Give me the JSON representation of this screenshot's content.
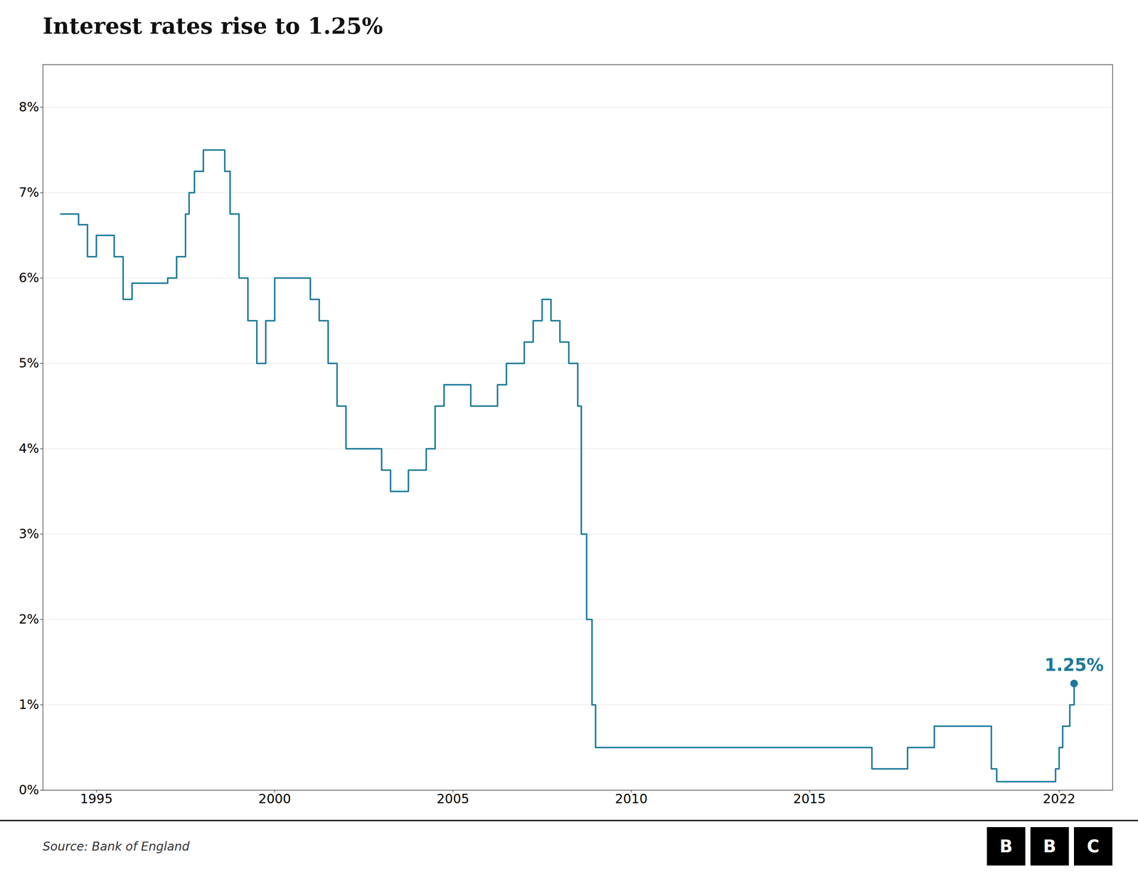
{
  "chart_data": {
    "type": "step",
    "title": "Interest rates rise to 1.25%",
    "source": "Source: Bank of England",
    "logo": [
      "B",
      "B",
      "C"
    ],
    "color": "#1a7a9a",
    "x": [
      1994.0,
      1994.25,
      1994.5,
      1994.75,
      1995.0,
      1995.5,
      1995.75,
      1996.0,
      1996.5,
      1997.0,
      1997.25,
      1997.5,
      1997.6,
      1997.75,
      1998.0,
      1998.25,
      1998.5,
      1998.6,
      1998.75,
      1999.0,
      1999.25,
      1999.5,
      1999.75,
      2000.0,
      2000.5,
      2001.0,
      2001.25,
      2001.5,
      2001.75,
      2002.0,
      2002.5,
      2003.0,
      2003.25,
      2003.5,
      2003.75,
      2004.0,
      2004.25,
      2004.5,
      2004.75,
      2005.0,
      2005.25,
      2005.5,
      2006.0,
      2006.25,
      2006.5,
      2007.0,
      2007.25,
      2007.5,
      2007.6,
      2007.75,
      2008.0,
      2008.25,
      2008.5,
      2008.6,
      2008.75,
      2008.9,
      2009.0,
      2016.5,
      2016.75,
      2017.75,
      2018.5,
      2020.0,
      2020.1,
      2020.25,
      2021.75,
      2021.9,
      2022.0,
      2022.1,
      2022.3,
      2022.42
    ],
    "values": [
      6.75,
      6.75,
      6.625,
      6.25,
      6.5,
      6.25,
      5.75,
      5.94,
      5.94,
      6.0,
      6.25,
      6.75,
      7.0,
      7.25,
      7.5,
      7.5,
      7.5,
      7.25,
      6.75,
      6.0,
      5.5,
      5.0,
      5.5,
      6.0,
      6.0,
      5.75,
      5.5,
      5.0,
      4.5,
      4.0,
      4.0,
      3.75,
      3.5,
      3.5,
      3.75,
      3.75,
      4.0,
      4.5,
      4.75,
      4.75,
      4.75,
      4.5,
      4.5,
      4.75,
      5.0,
      5.25,
      5.5,
      5.75,
      5.75,
      5.5,
      5.25,
      5.0,
      4.5,
      3.0,
      2.0,
      1.0,
      0.5,
      0.5,
      0.25,
      0.5,
      0.75,
      0.75,
      0.25,
      0.1,
      0.1,
      0.25,
      0.5,
      0.75,
      1.0,
      1.25
    ],
    "xlim": [
      1993.5,
      2023.5
    ],
    "xticks": [
      1995,
      2000,
      2005,
      2010,
      2015,
      2022
    ],
    "ylim": [
      0,
      8.5
    ],
    "yticks": [
      {
        "value": 0,
        "label": "0%"
      },
      {
        "value": 1,
        "label": "1%"
      },
      {
        "value": 2,
        "label": "2%"
      },
      {
        "value": 3,
        "label": "3%"
      },
      {
        "value": 4,
        "label": "4%"
      },
      {
        "value": 5,
        "label": "5%"
      },
      {
        "value": 6,
        "label": "6%"
      },
      {
        "value": 7,
        "label": "7%"
      },
      {
        "value": 8,
        "label": "8%"
      }
    ],
    "grid": "y",
    "annotations": [
      {
        "x": 2022.42,
        "y": 1.25,
        "text": "1.25%"
      }
    ]
  }
}
